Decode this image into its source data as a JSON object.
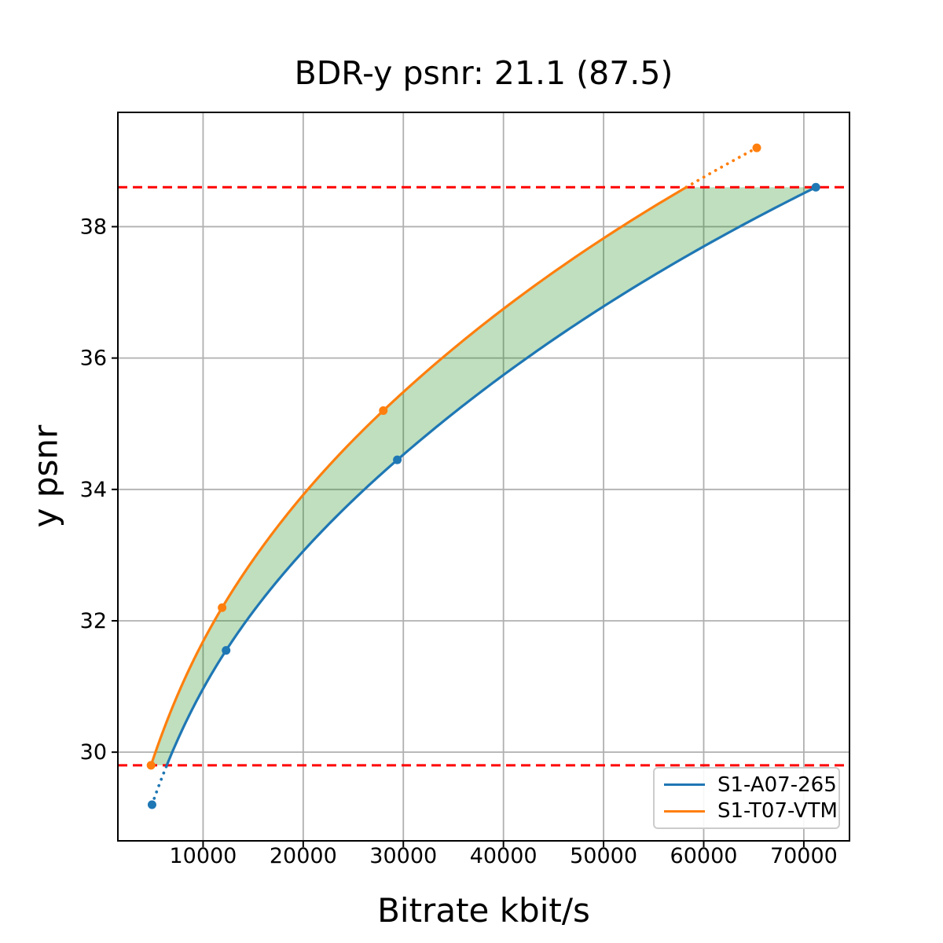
{
  "chart_data": {
    "type": "line",
    "title": "BDR-y psnr: 21.1 (87.5)",
    "xlabel": "Bitrate kbit/s",
    "ylabel": "y psnr",
    "x_ticks": [
      10000,
      20000,
      30000,
      40000,
      50000,
      60000,
      70000
    ],
    "y_ticks": [
      30,
      32,
      34,
      36,
      38
    ],
    "xlim": [
      1490,
      74560
    ],
    "ylim": [
      28.65,
      39.74
    ],
    "grid": true,
    "legend_position": "lower right",
    "series": [
      {
        "name": "S1-A07-265",
        "color": "#1f77b4",
        "points": [
          [
            4900,
            29.2
          ],
          [
            12300,
            31.55
          ],
          [
            29400,
            34.45
          ],
          [
            71200,
            38.6
          ]
        ]
      },
      {
        "name": "S1-T07-VTM",
        "color": "#ff7f0e",
        "points": [
          [
            4800,
            29.8
          ],
          [
            11900,
            32.2
          ],
          [
            28000,
            35.2
          ],
          [
            65300,
            39.2
          ]
        ]
      }
    ],
    "hlines": [
      {
        "y": 38.6,
        "color": "#ff0000",
        "style": "dashed"
      },
      {
        "y": 29.8,
        "color": "#ff0000",
        "style": "dashed"
      }
    ],
    "shaded_region": {
      "between": [
        "S1-T07-VTM",
        "S1-A07-265"
      ],
      "y_clip": [
        29.8,
        38.6
      ],
      "color": "rgba(0,128,0,0.25)"
    },
    "colors": {
      "grid": "#b0b0b0",
      "spine": "#000000",
      "background": "#ffffff",
      "tick_text": "#000000"
    }
  },
  "legend": {
    "items": [
      {
        "label": "S1-A07-265",
        "color": "#1f77b4"
      },
      {
        "label": "S1-T07-VTM",
        "color": "#ff7f0e"
      }
    ]
  }
}
